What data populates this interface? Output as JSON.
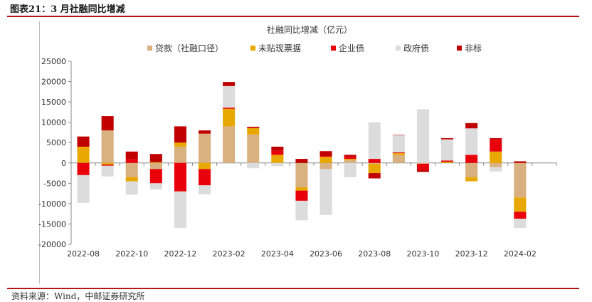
{
  "figure_title": "图表21：3 月社融同比增减",
  "source_text": "资料来源：Wind，中邮证券研究所",
  "chart_data": {
    "type": "bar",
    "stacked": true,
    "title": "社融同比增减（亿元）",
    "legend_position": "top",
    "grid": false,
    "ylim": [
      -20000,
      25000
    ],
    "yticks": [
      -20000,
      -15000,
      -10000,
      -5000,
      0,
      5000,
      10000,
      15000,
      20000,
      25000
    ],
    "x_tick_labels": [
      "2022-08",
      "2022-10",
      "2022-12",
      "2023-02",
      "2023-04",
      "2023-06",
      "2023-08",
      "2023-10",
      "2023-12",
      "2024-02"
    ],
    "categories": [
      "2022-08",
      "2022-09",
      "2022-10",
      "2022-11",
      "2022-12",
      "2023-01",
      "2023-02",
      "2023-03",
      "2023-04",
      "2023-05",
      "2023-06",
      "2023-07",
      "2023-08",
      "2023-09",
      "2023-10",
      "2023-11",
      "2023-12",
      "2024-01",
      "2024-02",
      "2024-03"
    ],
    "series": [
      {
        "name": "贷款（社融口径）",
        "color": "#d9b07f",
        "values": [
          0,
          8000,
          -3500,
          -1500,
          4000,
          7200,
          9000,
          7000,
          0,
          -6000,
          -1500,
          700,
          -200,
          2000,
          -200,
          0,
          -3500,
          -1000,
          -8500,
          0
        ]
      },
      {
        "name": "未贴现票据",
        "color": "#e8a800",
        "values": [
          4000,
          -400,
          -1000,
          200,
          1000,
          -1500,
          4300,
          1600,
          2000,
          -800,
          1500,
          300,
          -2300,
          400,
          0,
          300,
          -1000,
          2800,
          -3500,
          0
        ]
      },
      {
        "name": "企业债",
        "color": "#e8000b",
        "values": [
          -3000,
          -300,
          1000,
          -3500,
          -7000,
          -4000,
          300,
          0,
          1000,
          -2500,
          200,
          500,
          1000,
          200,
          -1500,
          300,
          2000,
          3000,
          -1700,
          0
        ]
      },
      {
        "name": "政府债",
        "color": "#dcdcdc",
        "values": [
          -6800,
          -2600,
          -3300,
          -1500,
          -9000,
          -2200,
          5300,
          -1300,
          -800,
          -4800,
          -11300,
          -3500,
          9000,
          4200,
          13200,
          5200,
          6500,
          -1100,
          -2300,
          0
        ]
      },
      {
        "name": "非标",
        "color": "#c00000",
        "values": [
          2500,
          3500,
          1800,
          2000,
          4000,
          800,
          1000,
          300,
          1000,
          1000,
          1200,
          500,
          -1300,
          100,
          -500,
          300,
          1300,
          300,
          400,
          0
        ]
      }
    ]
  }
}
